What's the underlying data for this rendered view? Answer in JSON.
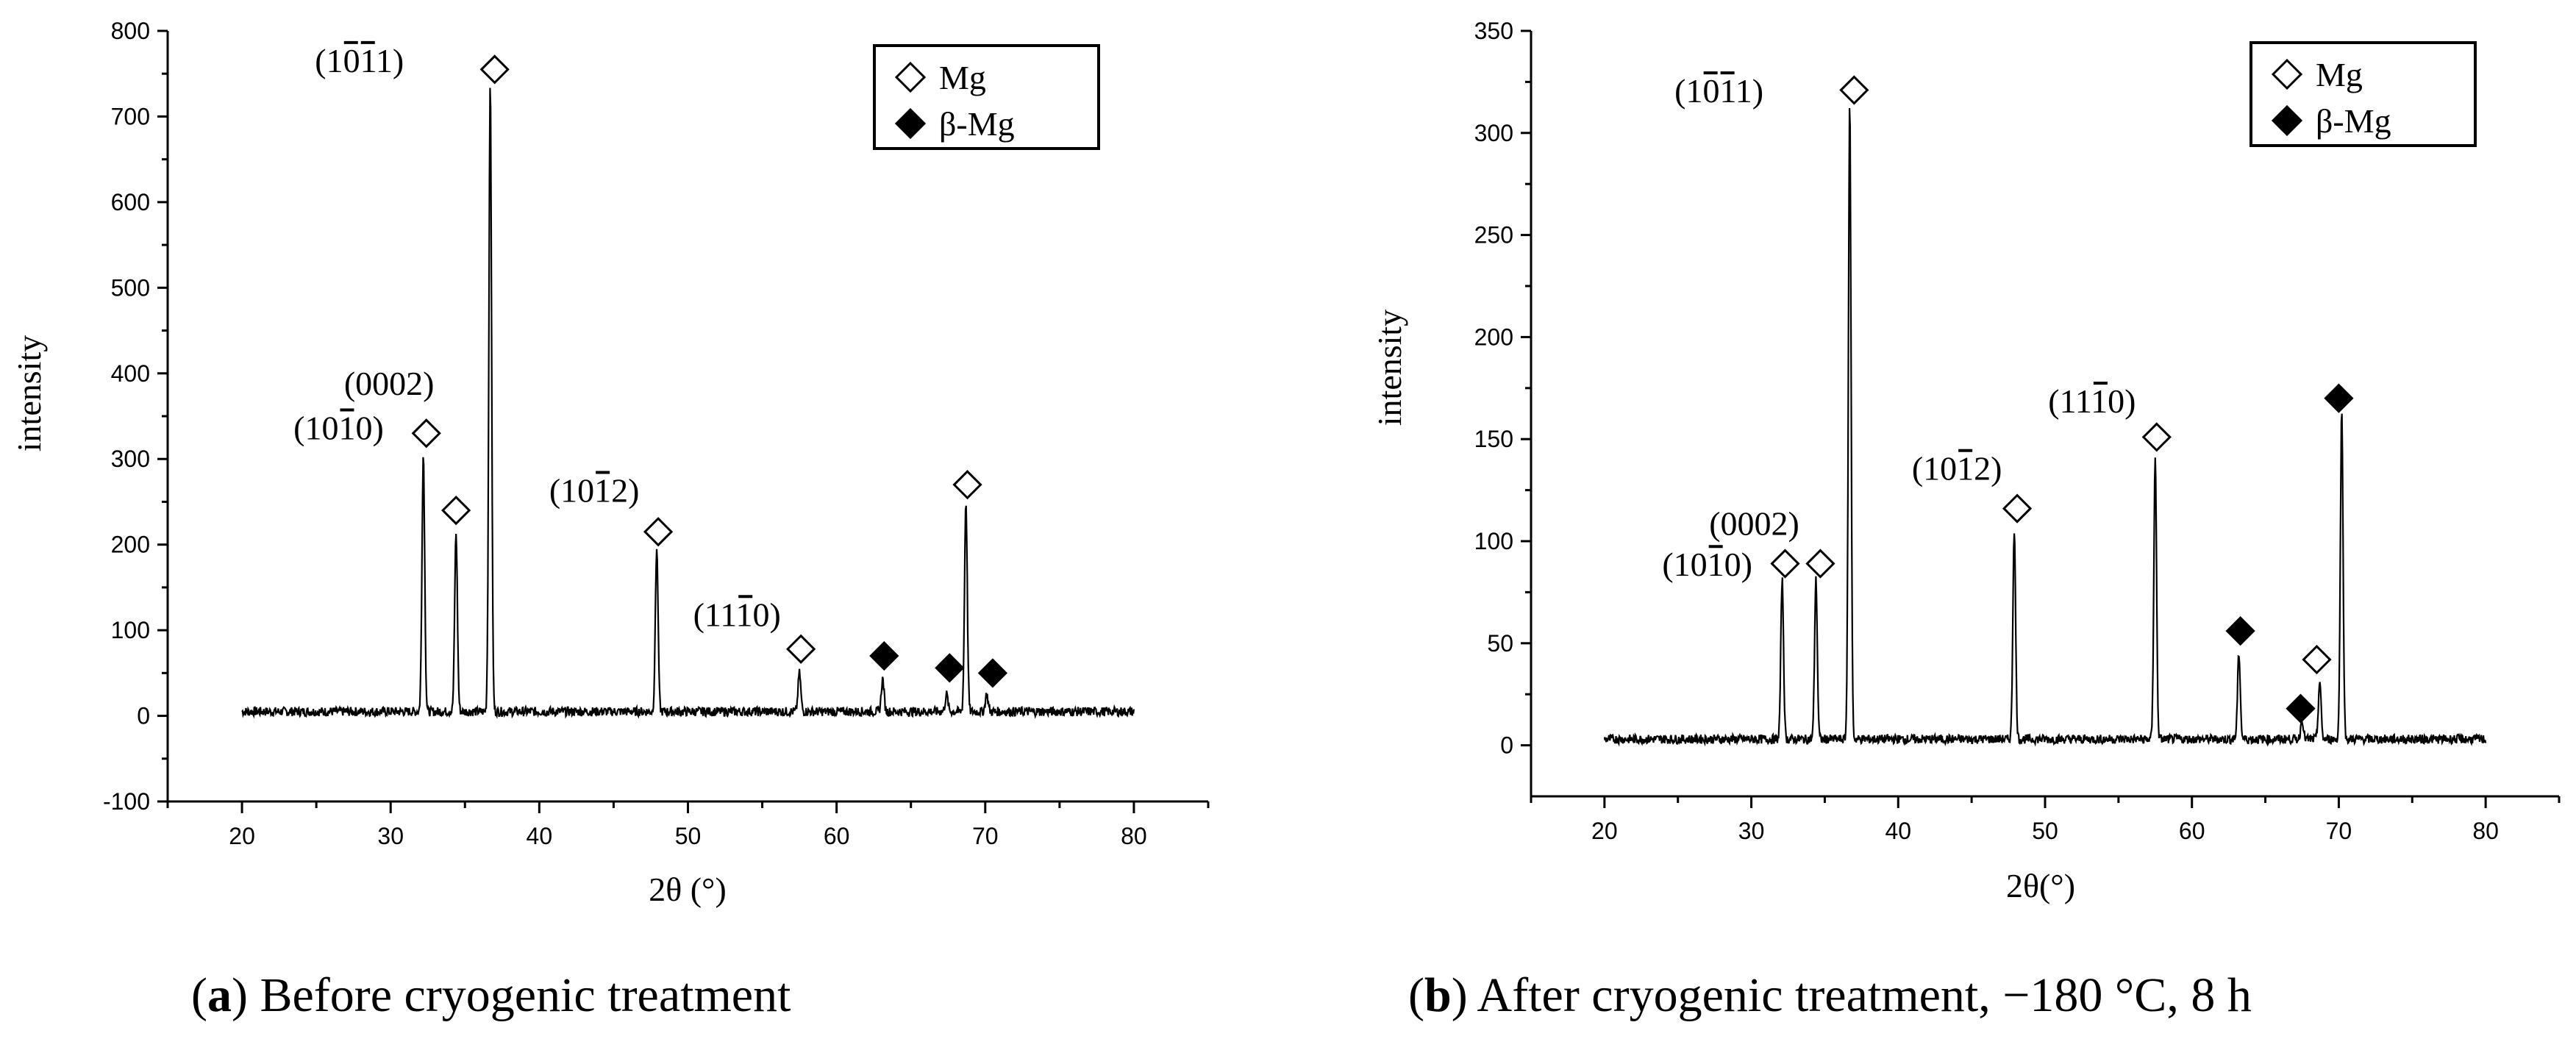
{
  "chart_data": [
    {
      "type": "line",
      "panel": "a",
      "caption": {
        "letter": "a",
        "text": ") Before cryogenic treatment",
        "open": "("
      },
      "xlabel": "2θ (°)",
      "ylabel": "intensity",
      "xlim": [
        15,
        85
      ],
      "ylim": [
        -100,
        800
      ],
      "xticks": [
        20,
        30,
        40,
        50,
        60,
        70,
        80
      ],
      "yticks": [
        -100,
        0,
        100,
        200,
        300,
        400,
        500,
        600,
        700,
        800
      ],
      "baseline": 5,
      "x_range": [
        20,
        80
      ],
      "peaks": [
        {
          "x": 32.2,
          "y": 300
        },
        {
          "x": 34.4,
          "y": 208
        },
        {
          "x": 36.7,
          "y": 730
        },
        {
          "x": 47.9,
          "y": 190
        },
        {
          "x": 57.5,
          "y": 45
        },
        {
          "x": 63.1,
          "y": 38
        },
        {
          "x": 67.4,
          "y": 20
        },
        {
          "x": 68.7,
          "y": 245
        },
        {
          "x": 70.1,
          "y": 20
        }
      ],
      "markers": [
        {
          "x": 32.4,
          "y": 330,
          "kind": "Mg"
        },
        {
          "x": 34.4,
          "y": 240,
          "kind": "Mg"
        },
        {
          "x": 37.0,
          "y": 755,
          "kind": "Mg"
        },
        {
          "x": 48.0,
          "y": 215,
          "kind": "Mg"
        },
        {
          "x": 57.6,
          "y": 78,
          "kind": "Mg"
        },
        {
          "x": 68.8,
          "y": 270,
          "kind": "Mg"
        },
        {
          "x": 63.2,
          "y": 70,
          "kind": "beta"
        },
        {
          "x": 67.6,
          "y": 56,
          "kind": "beta"
        },
        {
          "x": 70.5,
          "y": 50,
          "kind": "beta"
        }
      ],
      "annotations": [
        {
          "text": "(1011)",
          "bar_chars": [
            2,
            3
          ],
          "x": 27.9,
          "y": 752
        },
        {
          "text": "(0002)",
          "bar_chars": [],
          "x": 29.9,
          "y": 375
        },
        {
          "text": "(1010)",
          "bar_chars": [
            3
          ],
          "x": 26.5,
          "y": 323
        },
        {
          "text": "(1012)",
          "bar_chars": [
            3
          ],
          "x": 43.7,
          "y": 250
        },
        {
          "text": "(1110)",
          "bar_chars": [
            3
          ],
          "x": 53.3,
          "y": 105
        }
      ],
      "legend": {
        "position": "top-right",
        "entries": [
          "Mg",
          "β-Mg"
        ]
      }
    },
    {
      "type": "line",
      "panel": "b",
      "caption": {
        "letter": "b",
        "text": ") After cryogenic treatment, −180 °C, 8 h",
        "open": "("
      },
      "xlabel": "2θ(°)",
      "ylabel": "intensity",
      "xlim": [
        15,
        85
      ],
      "ylim": [
        -25,
        350
      ],
      "xticks": [
        20,
        30,
        40,
        50,
        60,
        70,
        80
      ],
      "yticks": [
        0,
        50,
        100,
        150,
        200,
        250,
        300,
        350
      ],
      "baseline": 3,
      "x_range": [
        20,
        80
      ],
      "peaks": [
        {
          "x": 32.1,
          "y": 78
        },
        {
          "x": 34.4,
          "y": 78
        },
        {
          "x": 36.7,
          "y": 310
        },
        {
          "x": 47.9,
          "y": 103
        },
        {
          "x": 57.5,
          "y": 138
        },
        {
          "x": 63.2,
          "y": 42
        },
        {
          "x": 67.5,
          "y": 10
        },
        {
          "x": 68.7,
          "y": 28
        },
        {
          "x": 70.2,
          "y": 160
        }
      ],
      "markers": [
        {
          "x": 32.3,
          "y": 89,
          "kind": "Mg"
        },
        {
          "x": 34.7,
          "y": 89,
          "kind": "Mg"
        },
        {
          "x": 37.0,
          "y": 321,
          "kind": "Mg"
        },
        {
          "x": 48.1,
          "y": 116,
          "kind": "Mg"
        },
        {
          "x": 57.6,
          "y": 151,
          "kind": "Mg"
        },
        {
          "x": 68.5,
          "y": 42,
          "kind": "Mg"
        },
        {
          "x": 63.3,
          "y": 56,
          "kind": "beta"
        },
        {
          "x": 67.4,
          "y": 18,
          "kind": "beta"
        },
        {
          "x": 70.0,
          "y": 170,
          "kind": "beta"
        }
      ],
      "annotations": [
        {
          "text": "(1011)",
          "bar_chars": [
            2,
            3
          ],
          "x": 27.8,
          "y": 315
        },
        {
          "text": "(0002)",
          "bar_chars": [],
          "x": 30.2,
          "y": 103
        },
        {
          "text": "(1010)",
          "bar_chars": [
            3
          ],
          "x": 27.0,
          "y": 83
        },
        {
          "text": "(1012)",
          "bar_chars": [
            3
          ],
          "x": 44.0,
          "y": 130
        },
        {
          "text": "(1110)",
          "bar_chars": [
            3
          ],
          "x": 53.2,
          "y": 163
        }
      ],
      "legend": {
        "position": "top-right",
        "entries": [
          "Mg",
          "β-Mg"
        ]
      }
    }
  ]
}
